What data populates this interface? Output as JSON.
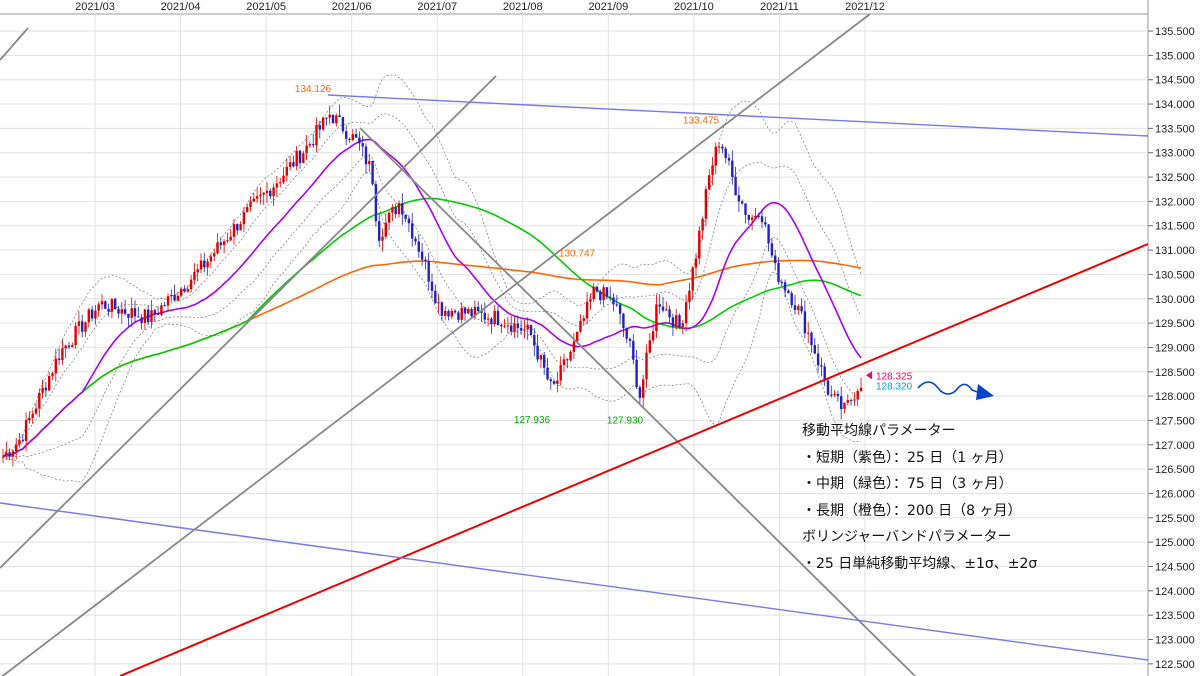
{
  "chart_data": {
    "type": "candlestick",
    "x_ticks": [
      "2021/03",
      "2021/04",
      "2021/05",
      "2021/06",
      "2021/07",
      "2021/08",
      "2021/09",
      "2021/10",
      "2021/11",
      "2021/12"
    ],
    "y_ticks": [
      "135.500",
      "135.000",
      "134.500",
      "134.000",
      "133.500",
      "133.000",
      "132.500",
      "132.000",
      "131.500",
      "131.000",
      "130.500",
      "130.000",
      "129.500",
      "129.000",
      "128.500",
      "128.000",
      "127.500",
      "127.000",
      "126.500",
      "126.000",
      "125.500",
      "125.000",
      "124.500",
      "124.000",
      "123.500",
      "123.000",
      "122.500"
    ],
    "ylim": [
      122.25,
      135.85
    ],
    "price_start": 126.9,
    "annotations": [
      {
        "label": "134.126",
        "value": 134.126,
        "color": "#ff6600"
      },
      {
        "label": "133.475",
        "value": 133.475,
        "color": "#ff6600"
      },
      {
        "label": "130.747",
        "value": 130.747,
        "color": "#ff6600"
      },
      {
        "label": "127.936",
        "value": 127.936,
        "color": "#00aa00"
      },
      {
        "label": "127.930",
        "value": 127.93,
        "color": "#00aa00"
      }
    ],
    "current_prices": [
      {
        "label": "128.325",
        "value": 128.325,
        "color": "#ff0066"
      },
      {
        "label": "128.320",
        "value": 128.32,
        "color": "#00a0e0"
      }
    ],
    "colors": {
      "up": "#e00000",
      "down": "#2222bb",
      "ma_short": "#aa00ee",
      "ma_mid": "#00cc00",
      "ma_long": "#ff6600",
      "bollinger": "#777777",
      "trend_red": "#ee0000",
      "trend_blue": "#7777ee",
      "trend_gray": "#888888",
      "arrow": "#0044cc"
    }
  },
  "legend": {
    "title_ma": "移動平均線パラメーター",
    "short": "・短期（紫色）：25 日（1 ヶ月）",
    "mid": "・中期（緑色）：75 日（3 ヶ月）",
    "long": "・長期（橙色）：200 日（8 ヶ月）",
    "title_bb": "ボリンジャーバンドパラメーター",
    "bb": "・25 日単純移動平均線、±1σ、±2σ"
  }
}
